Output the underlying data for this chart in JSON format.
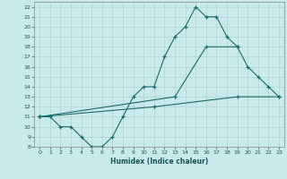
{
  "xlabel": "Humidex (Indice chaleur)",
  "background_color": "#c8eaea",
  "grid_color": "#b0d4d2",
  "line_color": "#1a6b6b",
  "xlim": [
    -0.5,
    23.5
  ],
  "ylim": [
    8,
    22.5
  ],
  "xticks": [
    0,
    1,
    2,
    3,
    4,
    5,
    6,
    7,
    8,
    9,
    10,
    11,
    12,
    13,
    14,
    15,
    16,
    17,
    18,
    19,
    20,
    21,
    22,
    23
  ],
  "yticks": [
    8,
    9,
    10,
    11,
    12,
    13,
    14,
    15,
    16,
    17,
    18,
    19,
    20,
    21,
    22
  ],
  "line1_x": [
    0,
    1,
    2,
    3,
    4,
    5,
    6,
    7,
    8,
    9,
    10,
    11,
    12,
    13,
    14,
    15,
    16,
    17,
    18,
    19
  ],
  "line1_y": [
    11,
    11,
    10,
    10,
    9,
    8,
    8,
    9,
    11,
    13,
    14,
    14,
    17,
    19,
    20,
    22,
    21,
    21,
    19,
    18
  ],
  "line2_x": [
    0,
    13,
    16,
    19,
    20,
    21,
    22,
    23
  ],
  "line2_y": [
    11,
    13,
    18,
    18,
    16,
    15,
    14,
    13
  ],
  "line3_x": [
    0,
    11,
    19,
    23
  ],
  "line3_y": [
    11,
    12,
    13,
    13
  ]
}
